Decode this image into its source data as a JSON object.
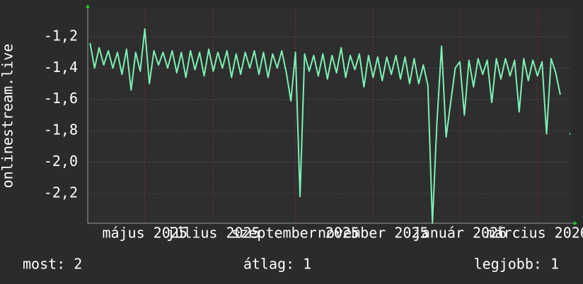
{
  "chart_data": {
    "type": "line",
    "y_label": "onlinestream.live",
    "categories": [
      null,
      null,
      null,
      null,
      null,
      null,
      null,
      null,
      null,
      null,
      null,
      null,
      "május 2025",
      null,
      null,
      null,
      null,
      null,
      null,
      null,
      null,
      null,
      null,
      null,
      null,
      null,
      null,
      "július 2025",
      null,
      null,
      null,
      null,
      null,
      null,
      null,
      null,
      null,
      null,
      null,
      null,
      null,
      null,
      null,
      null,
      null,
      "szeptember 2025",
      null,
      null,
      null,
      null,
      null,
      null,
      null,
      null,
      null,
      null,
      null,
      null,
      null,
      null,
      null,
      null,
      "november 2025",
      null,
      null,
      null,
      null,
      null,
      null,
      null,
      null,
      null,
      null,
      null,
      null,
      null,
      null,
      null,
      null,
      null,
      null,
      "január 2026",
      null,
      null,
      null,
      null,
      null,
      null,
      null,
      null,
      null,
      null,
      null,
      null,
      null,
      null,
      null,
      null,
      "március 2026",
      null,
      null,
      null,
      null,
      null,
      null,
      null
    ],
    "values": [
      -1.24,
      -1.4,
      -1.27,
      -1.38,
      -1.29,
      -1.4,
      -1.3,
      -1.44,
      -1.28,
      -1.54,
      -1.3,
      -1.42,
      -1.15,
      -1.5,
      -1.29,
      -1.38,
      -1.3,
      -1.4,
      -1.29,
      -1.43,
      -1.3,
      -1.46,
      -1.29,
      -1.41,
      -1.3,
      -1.45,
      -1.28,
      -1.42,
      -1.3,
      -1.4,
      -1.29,
      -1.46,
      -1.31,
      -1.44,
      -1.3,
      -1.4,
      -1.29,
      -1.44,
      -1.3,
      -1.46,
      -1.31,
      -1.4,
      -1.29,
      -1.43,
      -1.61,
      -1.3,
      -2.22,
      -1.31,
      -1.42,
      -1.32,
      -1.45,
      -1.31,
      -1.47,
      -1.32,
      -1.43,
      -1.27,
      -1.46,
      -1.32,
      -1.41,
      -1.31,
      -1.52,
      -1.32,
      -1.46,
      -1.33,
      -1.48,
      -1.33,
      -1.44,
      -1.32,
      -1.47,
      -1.33,
      -1.5,
      -1.34,
      -1.5,
      -1.38,
      -1.51,
      -2.39,
      -1.74,
      -1.26,
      -1.84,
      -1.62,
      -1.4,
      -1.36,
      -1.7,
      -1.35,
      -1.52,
      -1.34,
      -1.44,
      -1.35,
      -1.62,
      -1.34,
      -1.47,
      -1.34,
      -1.45,
      -1.35,
      -1.68,
      -1.34,
      -1.48,
      -1.35,
      -1.45,
      -1.36,
      -1.82,
      -1.34,
      -1.43,
      -1.57,
      null,
      -1.82
    ],
    "color": "#7cf0b4",
    "ylim": [
      -2.39,
      -1.02
    ],
    "yticks": [
      {
        "value": -2.2,
        "label": "-2,2"
      },
      {
        "value": -2.0,
        "label": "-2,0"
      },
      {
        "value": -1.8,
        "label": "-1,8"
      },
      {
        "value": -1.6,
        "label": "-1,6"
      },
      {
        "value": -1.4,
        "label": "-1,4"
      },
      {
        "value": -1.2,
        "label": "-1,2"
      }
    ],
    "grid": true,
    "footer": [
      "most: 2",
      "átlag: 1",
      "legjobb: 1"
    ]
  }
}
